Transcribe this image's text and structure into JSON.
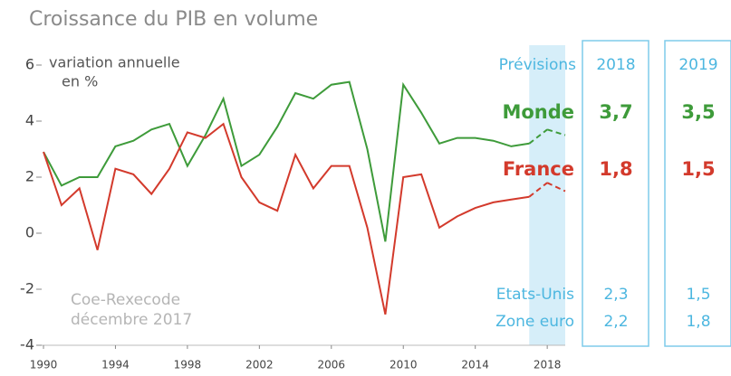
{
  "chart_data": {
    "type": "line",
    "title": "Croissance du PIB en volume",
    "ylabel": [
      "variation annuelle",
      "en %"
    ],
    "source": [
      "Coe-Rexecode",
      "décembre 2017"
    ],
    "x": [
      1990,
      1991,
      1992,
      1993,
      1994,
      1995,
      1996,
      1997,
      1998,
      1999,
      2000,
      2001,
      2002,
      2003,
      2004,
      2005,
      2006,
      2007,
      2008,
      2009,
      2010,
      2011,
      2012,
      2013,
      2014,
      2015,
      2016,
      2017,
      2018,
      2019
    ],
    "xlim": [
      1990,
      2019
    ],
    "xticks": [
      1990,
      1994,
      1998,
      2002,
      2006,
      2010,
      2014,
      2018
    ],
    "ylim": [
      -4,
      6
    ],
    "yticks": [
      -4,
      -2,
      0,
      2,
      4,
      6
    ],
    "grid": false,
    "forecast": {
      "label": "Prévisions",
      "years": [
        2018,
        2019
      ],
      "color": "#d6eef9"
    },
    "series": [
      {
        "name": "Monde",
        "color": "#3e9b3a",
        "values": [
          2.9,
          1.7,
          2.0,
          2.0,
          3.1,
          3.3,
          3.7,
          3.9,
          2.4,
          3.5,
          4.8,
          2.4,
          2.8,
          3.8,
          5.0,
          4.8,
          5.3,
          5.4,
          3.0,
          -0.3,
          5.3,
          4.3,
          3.2,
          3.4,
          3.4,
          3.3,
          3.1,
          3.2,
          3.7,
          3.5
        ],
        "forecast_labels": [
          "3,7",
          "3,5"
        ]
      },
      {
        "name": "France",
        "color": "#d33a2c",
        "values": [
          2.9,
          1.0,
          1.6,
          -0.6,
          2.3,
          2.1,
          1.4,
          2.3,
          3.6,
          3.4,
          3.9,
          2.0,
          1.1,
          0.8,
          2.8,
          1.6,
          2.4,
          2.4,
          0.2,
          -2.9,
          2.0,
          2.1,
          0.2,
          0.6,
          0.9,
          1.1,
          1.2,
          1.3,
          1.8,
          1.5
        ],
        "forecast_labels": [
          "1,8",
          "1,5"
        ]
      }
    ],
    "other_rows": [
      {
        "name": "Etats-Unis",
        "color": "#4db7e0",
        "values": [
          "2,3",
          "1,5"
        ]
      },
      {
        "name": "Zone euro",
        "color": "#4db7e0",
        "values": [
          "2,2",
          "1,8"
        ]
      }
    ]
  }
}
